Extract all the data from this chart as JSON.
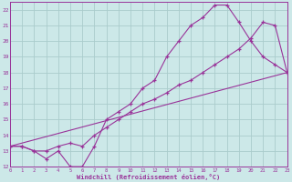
{
  "xlabel": "Windchill (Refroidissement éolien,°C)",
  "bg_color": "#cce8e8",
  "grid_color": "#aacccc",
  "line_color": "#993399",
  "xlim": [
    0,
    23
  ],
  "ylim": [
    12,
    22.5
  ],
  "xticks": [
    0,
    1,
    2,
    3,
    4,
    5,
    6,
    7,
    8,
    9,
    10,
    11,
    12,
    13,
    14,
    15,
    16,
    17,
    18,
    19,
    20,
    21,
    22,
    23
  ],
  "yticks": [
    12,
    13,
    14,
    15,
    16,
    17,
    18,
    19,
    20,
    21,
    22
  ],
  "line1_x": [
    0,
    1,
    2,
    3,
    4,
    5,
    6,
    7,
    8,
    9,
    10,
    11,
    12,
    13,
    14,
    15,
    16,
    17,
    18,
    19,
    20,
    21,
    22,
    23
  ],
  "line1_y": [
    13.3,
    13.3,
    13.0,
    12.5,
    13.0,
    12.0,
    12.0,
    13.3,
    15.0,
    15.5,
    16.0,
    17.0,
    17.5,
    19.0,
    20.0,
    21.0,
    21.5,
    22.3,
    22.3,
    21.2,
    20.0,
    19.0,
    18.5,
    18.0
  ],
  "line2_x": [
    0,
    1,
    2,
    3,
    4,
    5,
    6,
    7,
    8,
    9,
    10,
    11,
    12,
    13,
    14,
    15,
    16,
    17,
    18,
    19,
    20,
    21,
    22,
    23
  ],
  "line2_y": [
    13.3,
    13.3,
    13.0,
    13.0,
    13.3,
    13.5,
    13.3,
    14.0,
    14.5,
    15.0,
    15.5,
    16.0,
    16.3,
    16.7,
    17.2,
    17.5,
    18.0,
    18.5,
    19.0,
    19.5,
    20.2,
    21.2,
    21.0,
    18.0
  ],
  "line3_x": [
    0,
    23
  ],
  "line3_y": [
    13.3,
    18.0
  ]
}
